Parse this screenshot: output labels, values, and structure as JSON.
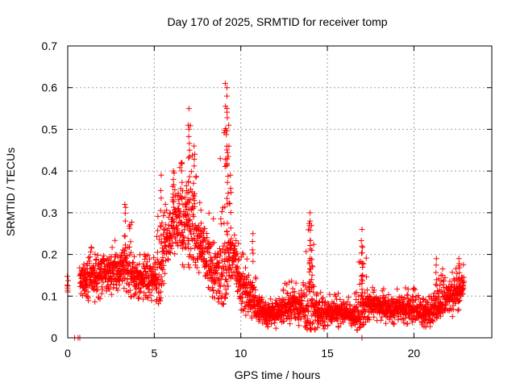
{
  "chart_data": {
    "type": "scatter",
    "title": "Day 170 of 2025, SRMTID for receiver tomp",
    "xlabel": "GPS time / hours",
    "ylabel": "SRMTID / TECUs",
    "xlim": [
      0,
      24.5
    ],
    "ylim": [
      0,
      0.7
    ],
    "xticks": [
      0,
      5,
      10,
      15,
      20
    ],
    "xtick_labels": [
      "0",
      "5",
      "10",
      "15",
      "20"
    ],
    "yticks": [
      0,
      0.1,
      0.2,
      0.3,
      0.4,
      0.5,
      0.6,
      0.7
    ],
    "ytick_labels": [
      "0",
      "0.1",
      "0.2",
      "0.3",
      "0.4",
      "0.5",
      "0.6",
      "0.7"
    ],
    "grid": true,
    "marker": "+",
    "color": "#ff0000",
    "envelope": {
      "description": "Dense cloud of '+' markers; for each hour: typical value and approximate spread (min/max)",
      "x": [
        0.7,
        1.0,
        1.5,
        2.0,
        2.5,
        3.0,
        3.3,
        3.6,
        4.0,
        4.5,
        5.0,
        5.3,
        5.6,
        6.0,
        6.5,
        7.0,
        7.5,
        8.0,
        8.5,
        9.0,
        9.3,
        9.6,
        10.0,
        10.5,
        11.0,
        11.5,
        12.0,
        12.5,
        13.0,
        13.5,
        14.0,
        14.5,
        15.0,
        15.5,
        16.0,
        16.5,
        17.0,
        17.5,
        18.0,
        18.5,
        19.0,
        19.5,
        20.0,
        20.5,
        21.0,
        21.5,
        22.0,
        22.5,
        22.9
      ],
      "mid": [
        0.15,
        0.14,
        0.15,
        0.16,
        0.15,
        0.17,
        0.16,
        0.16,
        0.14,
        0.14,
        0.15,
        0.14,
        0.22,
        0.27,
        0.28,
        0.27,
        0.24,
        0.19,
        0.15,
        0.15,
        0.2,
        0.2,
        0.12,
        0.11,
        0.07,
        0.06,
        0.06,
        0.07,
        0.08,
        0.07,
        0.07,
        0.06,
        0.06,
        0.06,
        0.06,
        0.05,
        0.08,
        0.08,
        0.08,
        0.07,
        0.07,
        0.07,
        0.07,
        0.06,
        0.06,
        0.09,
        0.1,
        0.11,
        0.13
      ],
      "lo": [
        0.1,
        0.09,
        0.08,
        0.09,
        0.1,
        0.11,
        0.1,
        0.1,
        0.09,
        0.08,
        0.09,
        0.08,
        0.14,
        0.17,
        0.17,
        0.17,
        0.15,
        0.12,
        0.09,
        0.08,
        0.13,
        0.12,
        0.06,
        0.05,
        0.03,
        0.02,
        0.02,
        0.03,
        0.03,
        0.02,
        0.02,
        0.02,
        0.02,
        0.02,
        0.02,
        0.01,
        0.03,
        0.04,
        0.04,
        0.03,
        0.03,
        0.03,
        0.03,
        0.02,
        0.02,
        0.04,
        0.05,
        0.05,
        0.08
      ],
      "hi": [
        0.22,
        0.2,
        0.23,
        0.23,
        0.23,
        0.24,
        0.32,
        0.31,
        0.2,
        0.21,
        0.2,
        0.39,
        0.37,
        0.39,
        0.42,
        0.55,
        0.41,
        0.33,
        0.28,
        0.61,
        0.39,
        0.28,
        0.2,
        0.25,
        0.13,
        0.11,
        0.11,
        0.13,
        0.14,
        0.12,
        0.3,
        0.12,
        0.1,
        0.12,
        0.11,
        0.1,
        0.26,
        0.13,
        0.12,
        0.12,
        0.12,
        0.12,
        0.12,
        0.11,
        0.11,
        0.19,
        0.15,
        0.17,
        0.19
      ]
    },
    "peaks": [
      {
        "x": 3.3,
        "y": 0.32
      },
      {
        "x": 5.4,
        "y": 0.39
      },
      {
        "x": 6.1,
        "y": 0.4
      },
      {
        "x": 6.6,
        "y": 0.42
      },
      {
        "x": 7.0,
        "y": 0.55
      },
      {
        "x": 7.0,
        "y": 0.5
      },
      {
        "x": 7.3,
        "y": 0.46
      },
      {
        "x": 9.1,
        "y": 0.61
      },
      {
        "x": 9.2,
        "y": 0.6
      },
      {
        "x": 9.2,
        "y": 0.58
      },
      {
        "x": 9.2,
        "y": 0.55
      },
      {
        "x": 9.3,
        "y": 0.51
      },
      {
        "x": 9.4,
        "y": 0.39
      },
      {
        "x": 10.7,
        "y": 0.25
      },
      {
        "x": 14.0,
        "y": 0.3
      },
      {
        "x": 14.0,
        "y": 0.28
      },
      {
        "x": 14.1,
        "y": 0.21
      },
      {
        "x": 17.0,
        "y": 0.26
      },
      {
        "x": 17.0,
        "y": 0.22
      },
      {
        "x": 21.3,
        "y": 0.19
      },
      {
        "x": 22.6,
        "y": 0.19
      },
      {
        "x": 0.0,
        "y": 0.11
      }
    ],
    "baseline_points": [
      {
        "x": 0.4,
        "y": 0.0
      },
      {
        "x": 0.6,
        "y": 0.0
      },
      {
        "x": 0.7,
        "y": 0.0
      },
      {
        "x": 17.0,
        "y": 0.0
      }
    ]
  }
}
